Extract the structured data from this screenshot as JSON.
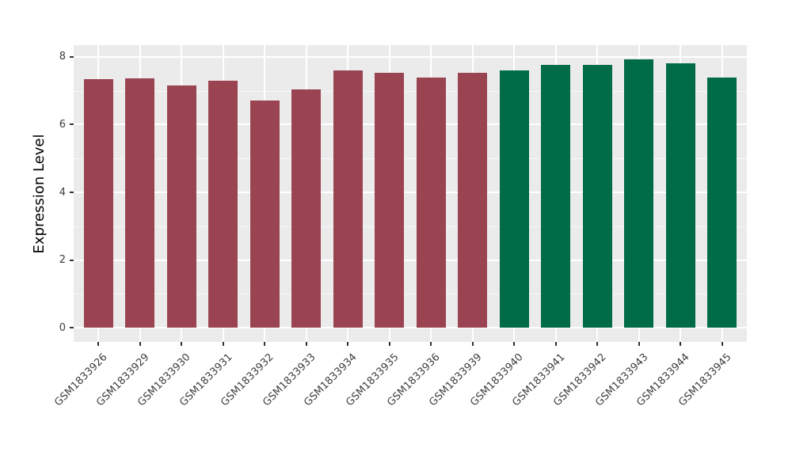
{
  "chart_data": {
    "type": "bar",
    "title": "",
    "xlabel": "",
    "ylabel": "Expression Level",
    "categories": [
      "GSM1833926",
      "GSM1833929",
      "GSM1833930",
      "GSM1833931",
      "GSM1833932",
      "GSM1833933",
      "GSM1833934",
      "GSM1833935",
      "GSM1833936",
      "GSM1833939",
      "GSM1833940",
      "GSM1833941",
      "GSM1833942",
      "GSM1833943",
      "GSM1833944",
      "GSM1833945"
    ],
    "values": [
      7.35,
      7.36,
      7.15,
      7.3,
      6.72,
      7.04,
      7.61,
      7.53,
      7.4,
      7.52,
      7.59,
      7.76,
      7.76,
      7.93,
      7.81,
      7.38
    ],
    "bar_colors": [
      "#9A4452",
      "#9A4452",
      "#9A4452",
      "#9A4452",
      "#9A4452",
      "#9A4452",
      "#9A4452",
      "#9A4452",
      "#9A4452",
      "#9A4452",
      "#006B47",
      "#006B47",
      "#006B47",
      "#006B47",
      "#006B47",
      "#006B47"
    ],
    "group_colors": {
      "group1": "#9A4452",
      "group2": "#006B47"
    },
    "y_ticks": [
      0,
      2,
      4,
      6,
      8
    ],
    "y_minor_ticks": [
      1,
      3,
      5,
      7
    ],
    "ylim": [
      0,
      8
    ],
    "panel_ylim": [
      -0.42,
      8.35
    ],
    "grid": true,
    "legend": "none",
    "panel_bg": "#EBEBEB",
    "grid_color": "#FFFFFF",
    "axis_text_color": "#3d3d3d",
    "tick_color": "#333333"
  }
}
